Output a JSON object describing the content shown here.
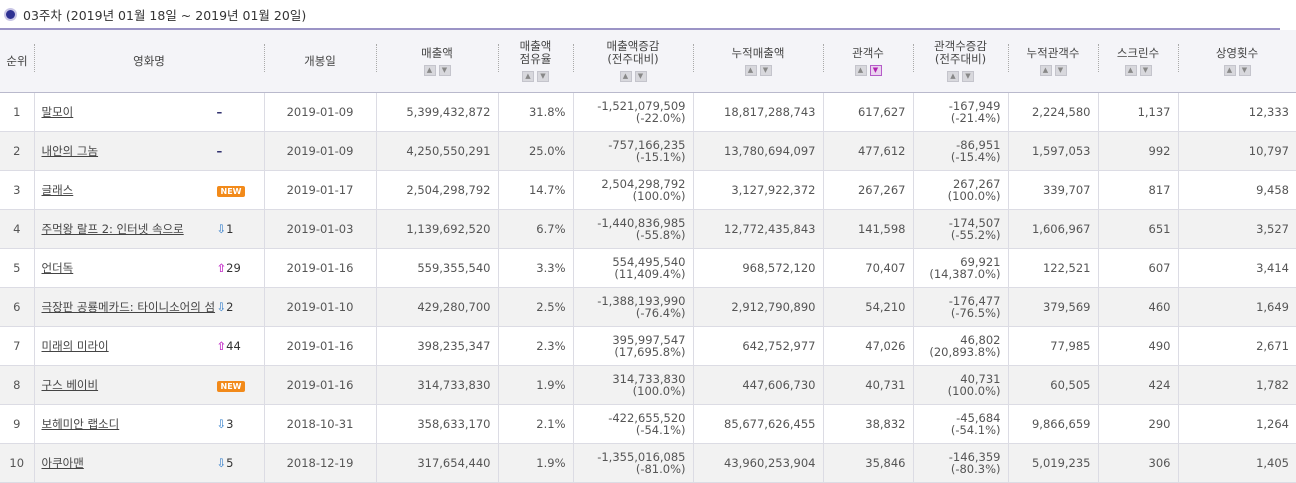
{
  "title": "03주차 (2019년 01월 18일 ~ 2019년 01월 20일)",
  "headers": {
    "rank": "순위",
    "movie": "영화명",
    "release": "개봉일",
    "sales": "매출액",
    "share_line1": "매출액",
    "share_line2": "점유율",
    "sales_change_line1": "매출액증감",
    "sales_change_line2": "(전주대비)",
    "cum_sales": "누적매출액",
    "audience": "관객수",
    "aud_change_line1": "관객수증감",
    "aud_change_line2": "(전주대비)",
    "cum_audience": "누적관객수",
    "screens": "스크린수",
    "shows": "상영횟수"
  },
  "sort_icon": {
    "up": "▲",
    "down": "▼"
  },
  "rows": [
    {
      "rank": "1",
      "movie": "말모이",
      "change_type": "dash",
      "change_text": "–",
      "change_num": "",
      "release": "2019-01-09",
      "sales": "5,399,432,872",
      "share": "31.8%",
      "sales_diff": "-1,521,079,509",
      "sales_diff_pct": "(-22.0%)",
      "cum_sales": "18,817,288,743",
      "audience": "617,627",
      "aud_diff": "-167,949",
      "aud_diff_pct": "(-21.4%)",
      "cum_audience": "2,224,580",
      "screens": "1,137",
      "shows": "12,333"
    },
    {
      "rank": "2",
      "movie": "내안의 그놈",
      "change_type": "dash",
      "change_text": "–",
      "change_num": "",
      "release": "2019-01-09",
      "sales": "4,250,550,291",
      "share": "25.0%",
      "sales_diff": "-757,166,235",
      "sales_diff_pct": "(-15.1%)",
      "cum_sales": "13,780,694,097",
      "audience": "477,612",
      "aud_diff": "-86,951",
      "aud_diff_pct": "(-15.4%)",
      "cum_audience": "1,597,053",
      "screens": "992",
      "shows": "10,797"
    },
    {
      "rank": "3",
      "movie": "글래스",
      "change_type": "new",
      "change_text": "NEW",
      "change_num": "",
      "release": "2019-01-17",
      "sales": "2,504,298,792",
      "share": "14.7%",
      "sales_diff": "2,504,298,792",
      "sales_diff_pct": "(100.0%)",
      "cum_sales": "3,127,922,372",
      "audience": "267,267",
      "aud_diff": "267,267",
      "aud_diff_pct": "(100.0%)",
      "cum_audience": "339,707",
      "screens": "817",
      "shows": "9,458"
    },
    {
      "rank": "4",
      "movie": "주먹왕 랄프 2: 인터넷 속으로",
      "change_type": "down",
      "change_text": "⇩",
      "change_num": "1",
      "release": "2019-01-03",
      "sales": "1,139,692,520",
      "share": "6.7%",
      "sales_diff": "-1,440,836,985",
      "sales_diff_pct": "(-55.8%)",
      "cum_sales": "12,772,435,843",
      "audience": "141,598",
      "aud_diff": "-174,507",
      "aud_diff_pct": "(-55.2%)",
      "cum_audience": "1,606,967",
      "screens": "651",
      "shows": "3,527"
    },
    {
      "rank": "5",
      "movie": "언더독",
      "change_type": "up",
      "change_text": "⇧",
      "change_num": "29",
      "release": "2019-01-16",
      "sales": "559,355,540",
      "share": "3.3%",
      "sales_diff": "554,495,540",
      "sales_diff_pct": "(11,409.4%)",
      "cum_sales": "968,572,120",
      "audience": "70,407",
      "aud_diff": "69,921",
      "aud_diff_pct": "(14,387.0%)",
      "cum_audience": "122,521",
      "screens": "607",
      "shows": "3,414"
    },
    {
      "rank": "6",
      "movie": "극장판 공룡메카드: 타이니소어의 섬",
      "change_type": "down",
      "change_text": "⇩",
      "change_num": "2",
      "release": "2019-01-10",
      "sales": "429,280,700",
      "share": "2.5%",
      "sales_diff": "-1,388,193,990",
      "sales_diff_pct": "(-76.4%)",
      "cum_sales": "2,912,790,890",
      "audience": "54,210",
      "aud_diff": "-176,477",
      "aud_diff_pct": "(-76.5%)",
      "cum_audience": "379,569",
      "screens": "460",
      "shows": "1,649"
    },
    {
      "rank": "7",
      "movie": "미래의 미라이",
      "change_type": "up",
      "change_text": "⇧",
      "change_num": "44",
      "release": "2019-01-16",
      "sales": "398,235,347",
      "share": "2.3%",
      "sales_diff": "395,997,547",
      "sales_diff_pct": "(17,695.8%)",
      "cum_sales": "642,752,977",
      "audience": "47,026",
      "aud_diff": "46,802",
      "aud_diff_pct": "(20,893.8%)",
      "cum_audience": "77,985",
      "screens": "490",
      "shows": "2,671"
    },
    {
      "rank": "8",
      "movie": "구스 베이비",
      "change_type": "new",
      "change_text": "NEW",
      "change_num": "",
      "release": "2019-01-16",
      "sales": "314,733,830",
      "share": "1.9%",
      "sales_diff": "314,733,830",
      "sales_diff_pct": "(100.0%)",
      "cum_sales": "447,606,730",
      "audience": "40,731",
      "aud_diff": "40,731",
      "aud_diff_pct": "(100.0%)",
      "cum_audience": "60,505",
      "screens": "424",
      "shows": "1,782"
    },
    {
      "rank": "9",
      "movie": "보헤미안 랩소디",
      "change_type": "down",
      "change_text": "⇩",
      "change_num": "3",
      "release": "2018-10-31",
      "sales": "358,633,170",
      "share": "2.1%",
      "sales_diff": "-422,655,520",
      "sales_diff_pct": "(-54.1%)",
      "cum_sales": "85,677,626,455",
      "audience": "38,832",
      "aud_diff": "-45,684",
      "aud_diff_pct": "(-54.1%)",
      "cum_audience": "9,866,659",
      "screens": "290",
      "shows": "1,264"
    },
    {
      "rank": "10",
      "movie": "아쿠아맨",
      "change_type": "down",
      "change_text": "⇩",
      "change_num": "5",
      "release": "2018-12-19",
      "sales": "317,654,440",
      "share": "1.9%",
      "sales_diff": "-1,355,016,085",
      "sales_diff_pct": "(-81.0%)",
      "cum_sales": "43,960,253,904",
      "audience": "35,846",
      "aud_diff": "-146,359",
      "aud_diff_pct": "(-80.3%)",
      "cum_audience": "5,019,235",
      "screens": "306",
      "shows": "1,405"
    }
  ]
}
